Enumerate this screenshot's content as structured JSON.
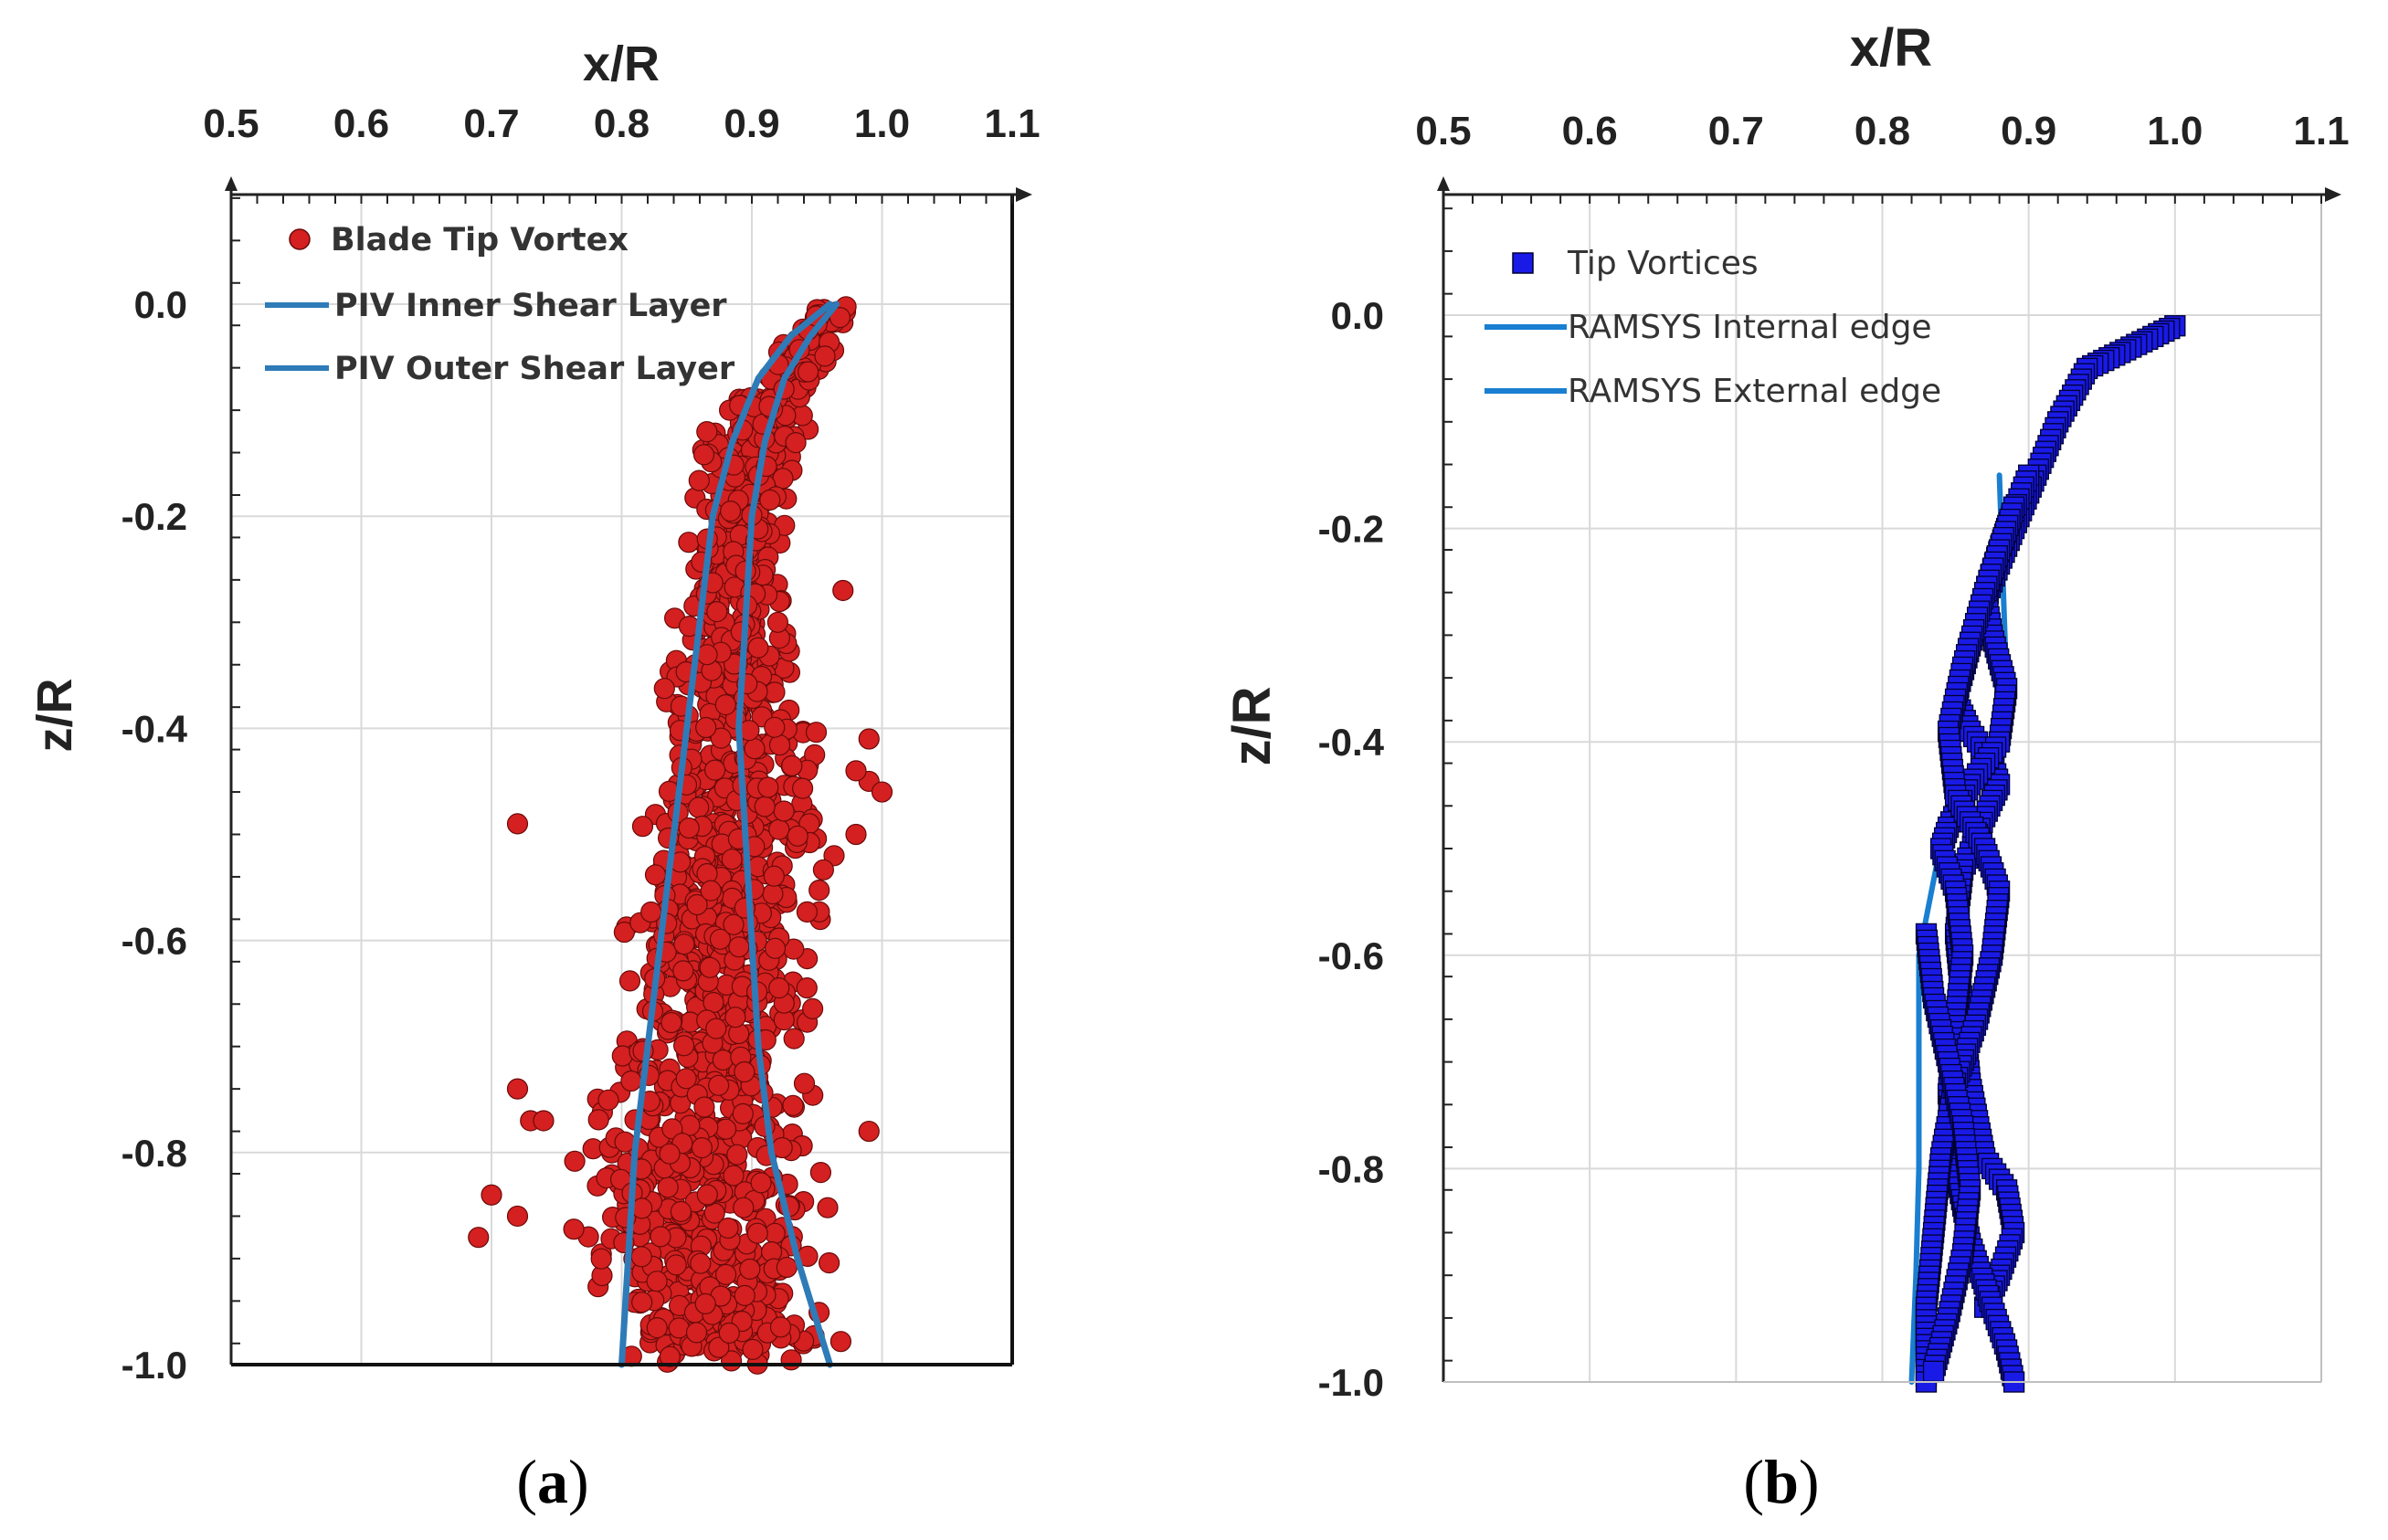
{
  "chart_data": [
    {
      "panel_label": "a",
      "type": "scatter",
      "xlabel": "x/R",
      "ylabel": "z/R",
      "xlim": [
        0.5,
        1.1
      ],
      "ylim": [
        -1.0,
        0.1
      ],
      "x_ticks": [
        "0.5",
        "0.6",
        "0.7",
        "0.8",
        "0.9",
        "1.0",
        "1.1"
      ],
      "y_ticks": [
        "0.0",
        "-0.2",
        "-0.4",
        "-0.6",
        "-0.8",
        "-1.0"
      ],
      "x_axis_position": "top",
      "grid": true,
      "legend_position": "top-left",
      "colors": {
        "points": "#d42020",
        "points_edge": "#6a0a0a",
        "lines": "#2e7bb8"
      },
      "series": [
        {
          "name": "Blade Tip Vortex",
          "kind": "scatter",
          "envelope": [
            {
              "z": 0.0,
              "xmin": 0.945,
              "xmax": 0.985
            },
            {
              "z": -0.05,
              "xmin": 0.905,
              "xmax": 0.975
            },
            {
              "z": -0.1,
              "xmin": 0.855,
              "xmax": 0.96
            },
            {
              "z": -0.2,
              "xmin": 0.84,
              "xmax": 0.94
            },
            {
              "z": -0.3,
              "xmin": 0.83,
              "xmax": 0.935
            },
            {
              "z": -0.4,
              "xmin": 0.8,
              "xmax": 0.97
            },
            {
              "z": -0.5,
              "xmin": 0.79,
              "xmax": 0.98
            },
            {
              "z": -0.6,
              "xmin": 0.79,
              "xmax": 0.96
            },
            {
              "z": -0.7,
              "xmin": 0.77,
              "xmax": 0.97
            },
            {
              "z": -0.8,
              "xmin": 0.74,
              "xmax": 0.98
            },
            {
              "z": -0.9,
              "xmin": 0.75,
              "xmax": 0.99
            },
            {
              "z": -1.0,
              "xmin": 0.76,
              "xmax": 0.99
            }
          ],
          "outliers": [
            {
              "x": 0.72,
              "z": -0.49
            },
            {
              "x": 0.7,
              "z": -0.84
            },
            {
              "x": 0.69,
              "z": -0.88
            },
            {
              "x": 0.72,
              "z": -0.86
            },
            {
              "x": 0.72,
              "z": -0.74
            },
            {
              "x": 0.73,
              "z": -0.77
            },
            {
              "x": 0.74,
              "z": -0.77
            },
            {
              "x": 0.99,
              "z": -0.45
            },
            {
              "x": 1.0,
              "z": -0.46
            },
            {
              "x": 0.98,
              "z": -0.44
            },
            {
              "x": 0.97,
              "z": -0.27
            },
            {
              "x": 0.99,
              "z": -0.41
            },
            {
              "x": 0.98,
              "z": -0.5
            },
            {
              "x": 0.99,
              "z": -0.78
            }
          ]
        },
        {
          "name": "PIV Inner Shear Layer",
          "kind": "line",
          "points": [
            {
              "x": 0.96,
              "z": 0.0
            },
            {
              "x": 0.93,
              "z": -0.03
            },
            {
              "x": 0.905,
              "z": -0.07
            },
            {
              "x": 0.885,
              "z": -0.13
            },
            {
              "x": 0.87,
              "z": -0.2
            },
            {
              "x": 0.86,
              "z": -0.3
            },
            {
              "x": 0.85,
              "z": -0.4
            },
            {
              "x": 0.84,
              "z": -0.5
            },
            {
              "x": 0.83,
              "z": -0.6
            },
            {
              "x": 0.82,
              "z": -0.7
            },
            {
              "x": 0.81,
              "z": -0.8
            },
            {
              "x": 0.805,
              "z": -0.9
            },
            {
              "x": 0.8,
              "z": -1.0
            }
          ]
        },
        {
          "name": "PIV Outer Shear Layer",
          "kind": "line",
          "points": [
            {
              "x": 0.965,
              "z": 0.0
            },
            {
              "x": 0.945,
              "z": -0.03
            },
            {
              "x": 0.925,
              "z": -0.07
            },
            {
              "x": 0.91,
              "z": -0.13
            },
            {
              "x": 0.9,
              "z": -0.2
            },
            {
              "x": 0.895,
              "z": -0.3
            },
            {
              "x": 0.89,
              "z": -0.4
            },
            {
              "x": 0.895,
              "z": -0.5
            },
            {
              "x": 0.9,
              "z": -0.6
            },
            {
              "x": 0.905,
              "z": -0.7
            },
            {
              "x": 0.915,
              "z": -0.8
            },
            {
              "x": 0.935,
              "z": -0.9
            },
            {
              "x": 0.96,
              "z": -1.0
            }
          ]
        }
      ]
    },
    {
      "panel_label": "b",
      "type": "scatter",
      "xlabel": "x/R",
      "ylabel": "z/R",
      "xlim": [
        0.5,
        1.1
      ],
      "ylim": [
        -1.0,
        0.1
      ],
      "x_ticks": [
        "0.5",
        "0.6",
        "0.7",
        "0.8",
        "0.9",
        "1.0",
        "1.1"
      ],
      "y_ticks": [
        "0.0",
        "-0.2",
        "-0.4",
        "-0.6",
        "-0.8",
        "-1.0"
      ],
      "x_axis_position": "top",
      "grid": true,
      "legend_position": "top-left",
      "colors": {
        "points": "#1a1ae6",
        "points_edge": "#000033",
        "lines": "#1a7fd0"
      },
      "series": [
        {
          "name": "Tip Vortices",
          "kind": "scatter",
          "paths": [
            [
              {
                "x": 1.0,
                "z": -0.01
              },
              {
                "x": 0.97,
                "z": -0.03
              },
              {
                "x": 0.94,
                "z": -0.05
              },
              {
                "x": 0.92,
                "z": -0.1
              },
              {
                "x": 0.905,
                "z": -0.15
              },
              {
                "x": 0.89,
                "z": -0.2
              },
              {
                "x": 0.875,
                "z": -0.25
              },
              {
                "x": 0.86,
                "z": -0.31
              },
              {
                "x": 0.85,
                "z": -0.36
              },
              {
                "x": 0.86,
                "z": -0.39
              },
              {
                "x": 0.875,
                "z": -0.42
              },
              {
                "x": 0.88,
                "z": -0.44
              },
              {
                "x": 0.87,
                "z": -0.47
              },
              {
                "x": 0.855,
                "z": -0.52
              },
              {
                "x": 0.85,
                "z": -0.58
              },
              {
                "x": 0.855,
                "z": -0.65
              },
              {
                "x": 0.86,
                "z": -0.72
              },
              {
                "x": 0.87,
                "z": -0.79
              },
              {
                "x": 0.885,
                "z": -0.82
              },
              {
                "x": 0.89,
                "z": -0.86
              },
              {
                "x": 0.88,
                "z": -0.9
              },
              {
                "x": 0.87,
                "z": -0.93
              }
            ],
            [
              {
                "x": 0.9,
                "z": -0.15
              },
              {
                "x": 0.885,
                "z": -0.2
              },
              {
                "x": 0.87,
                "z": -0.26
              },
              {
                "x": 0.875,
                "z": -0.3
              },
              {
                "x": 0.885,
                "z": -0.35
              },
              {
                "x": 0.88,
                "z": -0.4
              },
              {
                "x": 0.86,
                "z": -0.44
              },
              {
                "x": 0.845,
                "z": -0.48
              },
              {
                "x": 0.84,
                "z": -0.5
              },
              {
                "x": 0.85,
                "z": -0.54
              },
              {
                "x": 0.855,
                "z": -0.6
              },
              {
                "x": 0.85,
                "z": -0.66
              },
              {
                "x": 0.845,
                "z": -0.73
              },
              {
                "x": 0.85,
                "z": -0.8
              },
              {
                "x": 0.86,
                "z": -0.87
              },
              {
                "x": 0.875,
                "z": -0.93
              },
              {
                "x": 0.885,
                "z": -0.97
              },
              {
                "x": 0.89,
                "z": -1.0
              }
            ],
            [
              {
                "x": 0.89,
                "z": -0.18
              },
              {
                "x": 0.87,
                "z": -0.26
              },
              {
                "x": 0.855,
                "z": -0.33
              },
              {
                "x": 0.845,
                "z": -0.39
              },
              {
                "x": 0.85,
                "z": -0.45
              },
              {
                "x": 0.87,
                "z": -0.5
              },
              {
                "x": 0.88,
                "z": -0.54
              },
              {
                "x": 0.875,
                "z": -0.6
              },
              {
                "x": 0.865,
                "z": -0.66
              },
              {
                "x": 0.85,
                "z": -0.72
              },
              {
                "x": 0.84,
                "z": -0.79
              },
              {
                "x": 0.835,
                "z": -0.86
              },
              {
                "x": 0.83,
                "z": -0.93
              },
              {
                "x": 0.83,
                "z": -1.0
              }
            ],
            [
              {
                "x": 0.83,
                "z": -0.58
              },
              {
                "x": 0.835,
                "z": -0.64
              },
              {
                "x": 0.845,
                "z": -0.7
              },
              {
                "x": 0.855,
                "z": -0.76
              },
              {
                "x": 0.86,
                "z": -0.82
              },
              {
                "x": 0.855,
                "z": -0.88
              },
              {
                "x": 0.845,
                "z": -0.94
              },
              {
                "x": 0.835,
                "z": -0.99
              }
            ]
          ]
        },
        {
          "name": "RAMSYS Internal edge",
          "kind": "line",
          "points": [
            {
              "x": 0.845,
              "z": -0.46
            },
            {
              "x": 0.835,
              "z": -0.53
            },
            {
              "x": 0.825,
              "z": -0.6
            },
            {
              "x": 0.825,
              "z": -0.7
            },
            {
              "x": 0.825,
              "z": -0.8
            },
            {
              "x": 0.823,
              "z": -0.9
            },
            {
              "x": 0.82,
              "z": -1.0
            }
          ]
        },
        {
          "name": "RAMSYS External edge",
          "kind": "line",
          "points": [
            {
              "x": 0.88,
              "z": -0.15
            },
            {
              "x": 0.885,
              "z": -0.35
            },
            {
              "x": 0.88,
              "z": -0.45
            }
          ]
        }
      ]
    }
  ]
}
